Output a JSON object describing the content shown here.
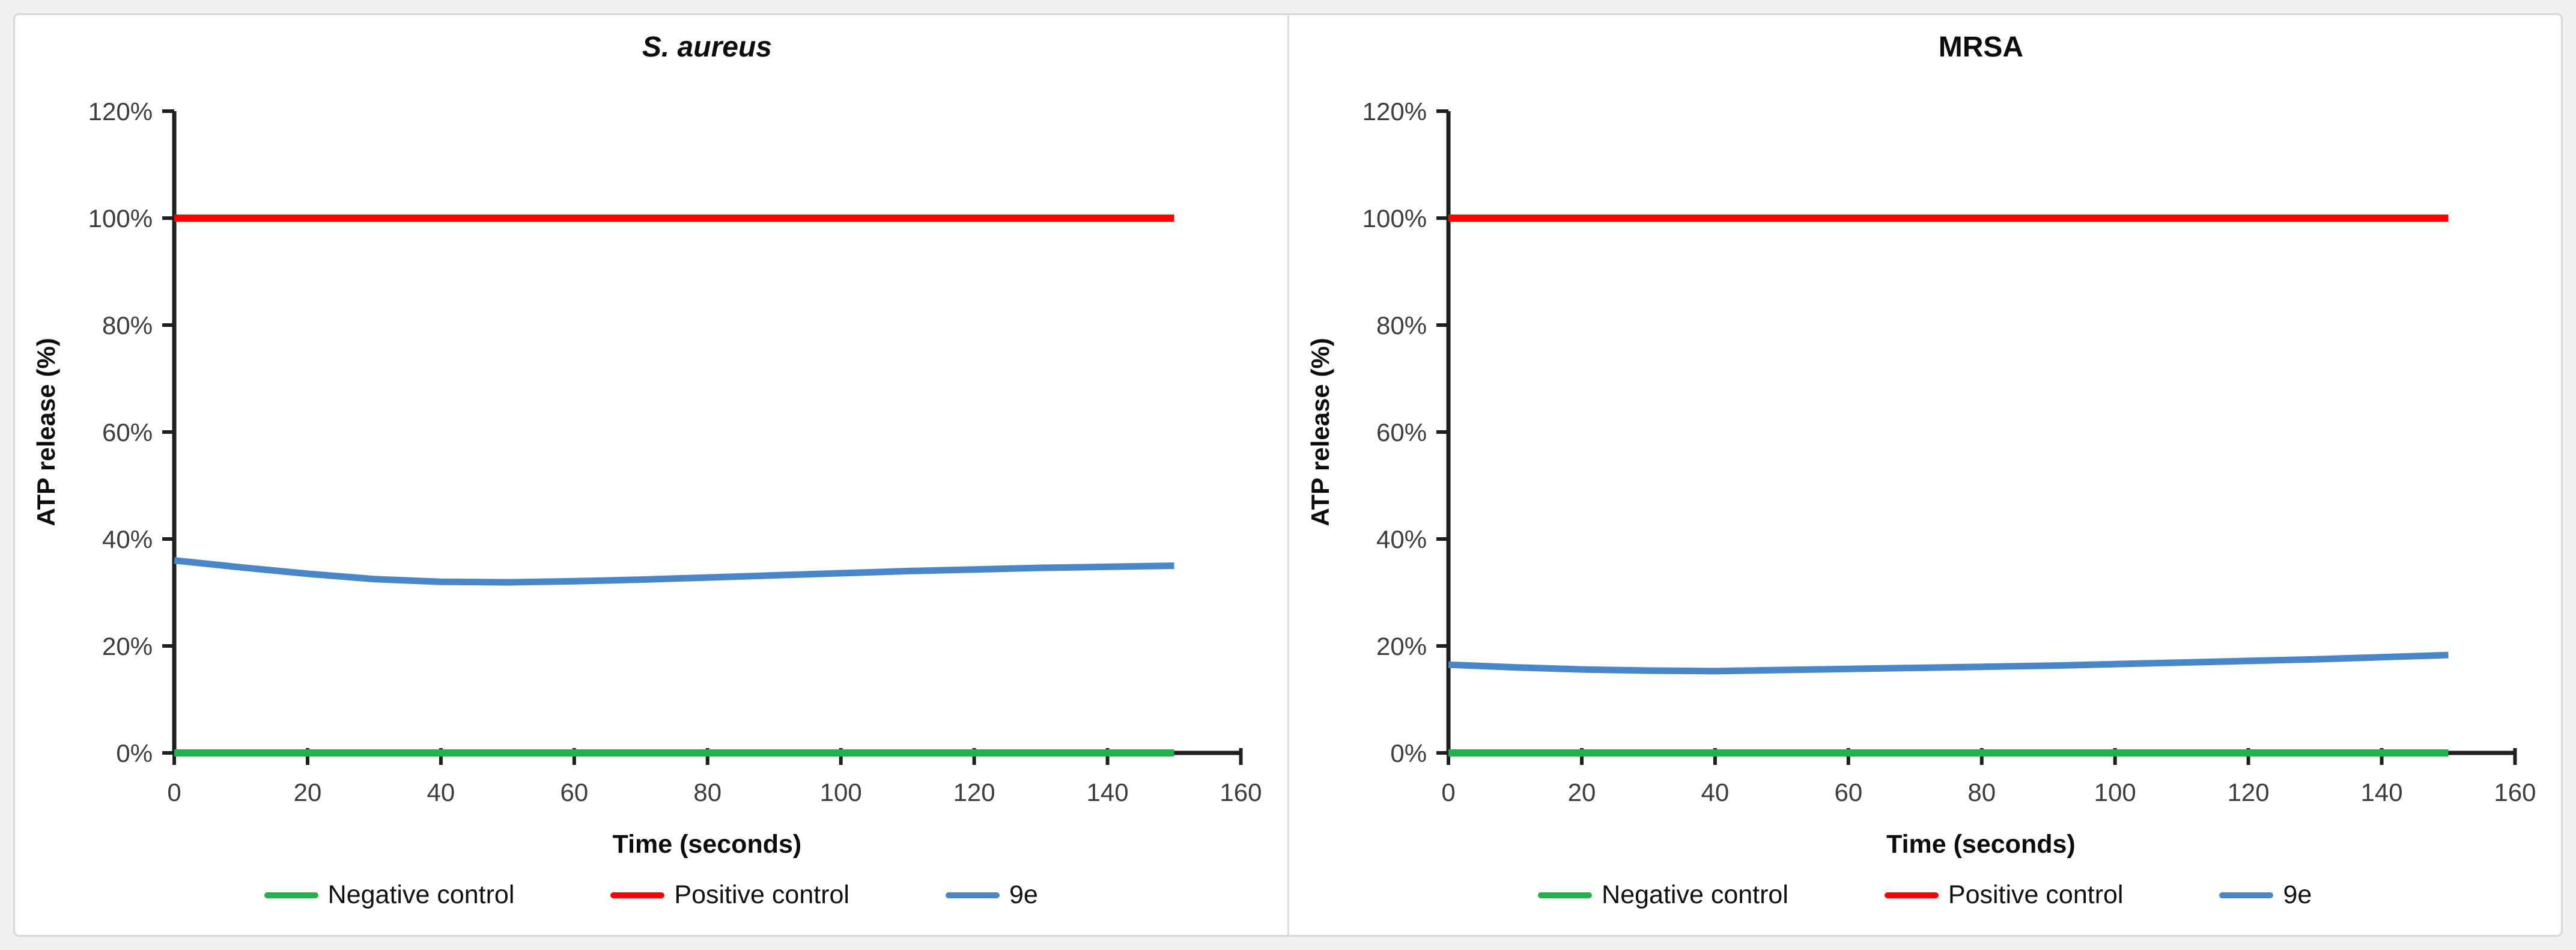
{
  "figure": {
    "background_color": "#ffffff",
    "border_color": "#d6d6d6",
    "axis_color": "#1f1f1f",
    "tick_label_color": "#3d3d3d"
  },
  "chart_data": [
    {
      "type": "line",
      "title": "S. aureus",
      "title_italic": true,
      "xlabel": "Time (seconds)",
      "ylabel": "ATP release (%)",
      "xlim": [
        0,
        160
      ],
      "ylim": [
        0,
        120
      ],
      "grid": false,
      "legend_position": "bottom",
      "x_ticks": [
        0,
        20,
        40,
        60,
        80,
        100,
        120,
        140,
        160
      ],
      "x_tick_labels": [
        "0",
        "20",
        "40",
        "60",
        "80",
        "100",
        "120",
        "140",
        "160"
      ],
      "y_ticks": [
        0,
        20,
        40,
        60,
        80,
        100,
        120
      ],
      "y_tick_labels": [
        "0%",
        "20%",
        "40%",
        "60%",
        "80%",
        "100%",
        "120%"
      ],
      "x": [
        0,
        10,
        20,
        30,
        40,
        50,
        60,
        70,
        80,
        90,
        100,
        110,
        120,
        130,
        140,
        150
      ],
      "series": [
        {
          "name": "Negative control",
          "color": "#22b14c",
          "values": [
            0,
            0,
            0,
            0,
            0,
            0,
            0,
            0,
            0,
            0,
            0,
            0,
            0,
            0,
            0,
            0
          ]
        },
        {
          "name": "Positive control",
          "color": "#ff0000",
          "values": [
            100,
            100,
            100,
            100,
            100,
            100,
            100,
            100,
            100,
            100,
            100,
            100,
            100,
            100,
            100,
            100
          ]
        },
        {
          "name": "9e",
          "color": "#4a87c9",
          "values": [
            36,
            34.7,
            33.5,
            32.5,
            32,
            31.9,
            32.1,
            32.4,
            32.8,
            33.2,
            33.6,
            34,
            34.3,
            34.6,
            34.8,
            35
          ]
        }
      ]
    },
    {
      "type": "line",
      "title": "MRSA",
      "title_italic": false,
      "xlabel": "Time (seconds)",
      "ylabel": "ATP release (%)",
      "xlim": [
        0,
        160
      ],
      "ylim": [
        0,
        120
      ],
      "grid": false,
      "legend_position": "bottom",
      "x_ticks": [
        0,
        20,
        40,
        60,
        80,
        100,
        120,
        140,
        160
      ],
      "x_tick_labels": [
        "0",
        "20",
        "40",
        "60",
        "80",
        "100",
        "120",
        "140",
        "160"
      ],
      "y_ticks": [
        0,
        20,
        40,
        60,
        80,
        100,
        120
      ],
      "y_tick_labels": [
        "0%",
        "20%",
        "40%",
        "60%",
        "80%",
        "100%",
        "120%"
      ],
      "x": [
        0,
        10,
        20,
        30,
        40,
        50,
        60,
        70,
        80,
        90,
        100,
        110,
        120,
        130,
        140,
        150
      ],
      "series": [
        {
          "name": "Negative control",
          "color": "#22b14c",
          "values": [
            0,
            0,
            0,
            0,
            0,
            0,
            0,
            0,
            0,
            0,
            0,
            0,
            0,
            0,
            0,
            0
          ]
        },
        {
          "name": "Positive control",
          "color": "#ff0000",
          "values": [
            100,
            100,
            100,
            100,
            100,
            100,
            100,
            100,
            100,
            100,
            100,
            100,
            100,
            100,
            100,
            100
          ]
        },
        {
          "name": "9e",
          "color": "#4a87c9",
          "values": [
            16.5,
            16,
            15.6,
            15.4,
            15.3,
            15.5,
            15.7,
            15.9,
            16.1,
            16.3,
            16.6,
            16.9,
            17.2,
            17.5,
            17.9,
            18.3
          ]
        }
      ]
    }
  ]
}
